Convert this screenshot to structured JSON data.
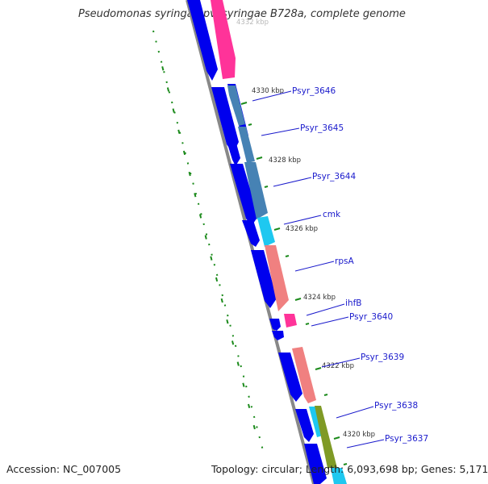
{
  "title": "Pseudomonas syringae pv. syringae B728a, complete genome",
  "footer": {
    "accession": "Accession: NC_007005",
    "summary": "Topology: circular; Length: 6,093,698 bp; Genes: 5,171"
  },
  "ticks": {
    "clipped": "4332 kbp",
    "t4330": "4330 kbp",
    "t4328": "4328 kbp",
    "t4326": "4326 kbp",
    "t4324": "4324 kbp",
    "t4322": "4322 kbp",
    "t4320": "4320 kbp"
  },
  "genes": {
    "g3646": "Psyr_3646",
    "g3645": "Psyr_3645",
    "g3644": "Psyr_3644",
    "cmk": "cmk",
    "rpsA": "rpsA",
    "ihfB": "ihfB",
    "g3640": "Psyr_3640",
    "g3639": "Psyr_3639",
    "g3638": "Psyr_3638",
    "g3637": "Psyr_3637"
  },
  "colors": {
    "strand_forward": "#0000ee",
    "cog_pink": "#ff3399",
    "cog_steelblue": "#4682b4",
    "cog_cyan": "#1ec8f0",
    "cog_salmon": "#f08080",
    "cog_olive": "#7f9a25",
    "tick_green": "#1b8a1b",
    "backbone": "#888888",
    "label": "#1a1acc"
  }
}
